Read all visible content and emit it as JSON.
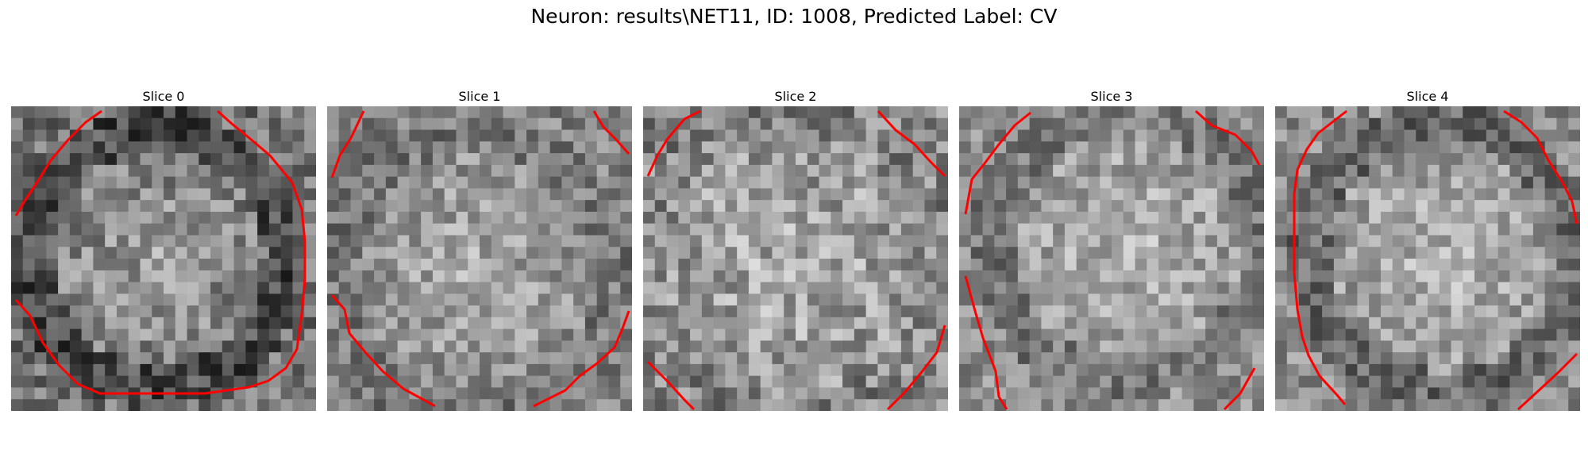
{
  "figure": {
    "title": "Neuron: results\\NET11, ID: 1008, Predicted Label: CV"
  },
  "panels": [
    {
      "title": "Slice 0",
      "contour_color": "#ff0000"
    },
    {
      "title": "Slice 1",
      "contour_color": "#ff0000"
    },
    {
      "title": "Slice 2",
      "contour_color": "#ff0000"
    },
    {
      "title": "Slice 3",
      "contour_color": "#ff0000"
    },
    {
      "title": "Slice 4",
      "contour_color": "#ff0000"
    }
  ],
  "colors": {
    "contour": "#ff0000",
    "background": "#ffffff"
  }
}
